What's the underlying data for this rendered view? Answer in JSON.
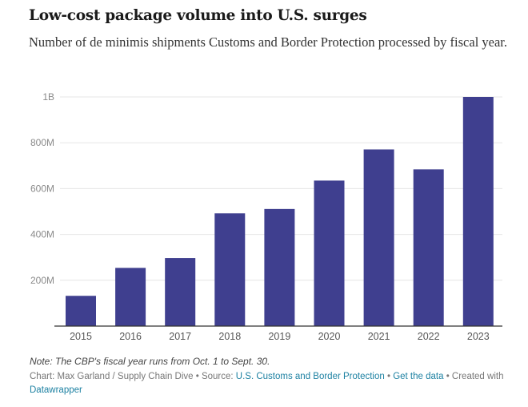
{
  "chart_data": {
    "type": "bar",
    "title": "Low-cost package volume into U.S. surges",
    "subtitle": "Number of de minimis shipments Customs and Border Protection processed by fiscal year.",
    "xlabel": "",
    "ylabel": "",
    "categories": [
      "2015",
      "2016",
      "2017",
      "2018",
      "2019",
      "2020",
      "2021",
      "2022",
      "2023"
    ],
    "values": [
      132000000,
      254000000,
      297000000,
      492000000,
      511000000,
      635000000,
      771000000,
      684000000,
      1000000000
    ],
    "ylim": [
      0,
      1000000000
    ],
    "yticks": [
      200000000,
      400000000,
      600000000,
      800000000,
      1000000000
    ],
    "ytick_labels": [
      "200M",
      "400M",
      "600M",
      "800M",
      "1B"
    ],
    "grid": true,
    "bar_color": "#3f3f8f"
  },
  "footer": {
    "note": "Note: The CBP's fiscal year runs from Oct. 1 to Sept. 30.",
    "credit_prefix": "Chart: Max Garland / Supply Chain Dive • Source: ",
    "source_link": "U.S. Customs and Border Protection",
    "sep1": " • ",
    "data_link": "Get the data",
    "sep2": " • Created with ",
    "datawrapper_link": "Datawrapper"
  }
}
